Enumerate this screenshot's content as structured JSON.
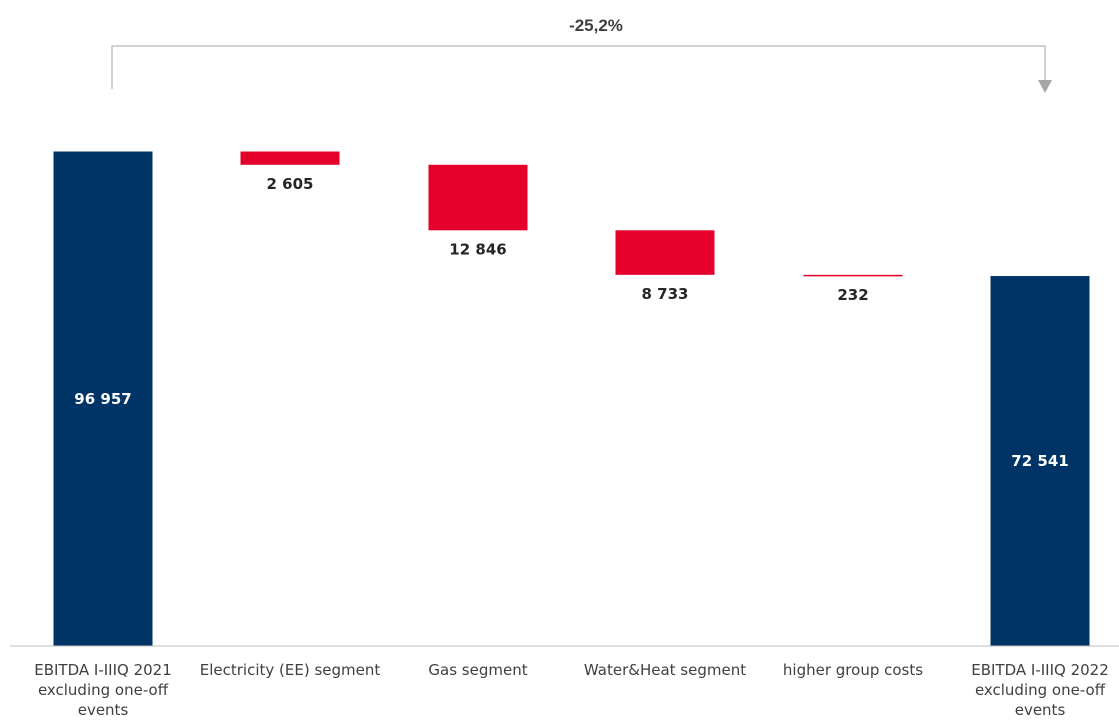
{
  "chart_data": {
    "type": "waterfall",
    "title": "",
    "categories": [
      [
        "EBITDA I-IIIQ 2021",
        "excluding one-off",
        "events"
      ],
      [
        "Electricity (EE) segment"
      ],
      [
        "Gas segment"
      ],
      [
        "Water&Heat segment"
      ],
      [
        "higher group costs"
      ],
      [
        "EBITDA I-IIIQ 2022",
        "excluding one-off",
        "events"
      ]
    ],
    "values": [
      96957,
      -2605,
      -12846,
      -8733,
      -232,
      72541
    ],
    "kinds": [
      "total",
      "delta",
      "delta",
      "delta",
      "delta",
      "total"
    ],
    "value_labels": [
      "96 957",
      "2 605",
      "12 846",
      "8 733",
      "232",
      "72 541"
    ],
    "ylim": [
      0,
      96957
    ],
    "change_label": "-25,2%",
    "colors": {
      "total": "#003366",
      "decrease": "#e4002b",
      "axis": "#bfbfbf",
      "bracket": "#a6a6a6",
      "label_dark": "#262626",
      "label_light": "#ffffff"
    }
  }
}
